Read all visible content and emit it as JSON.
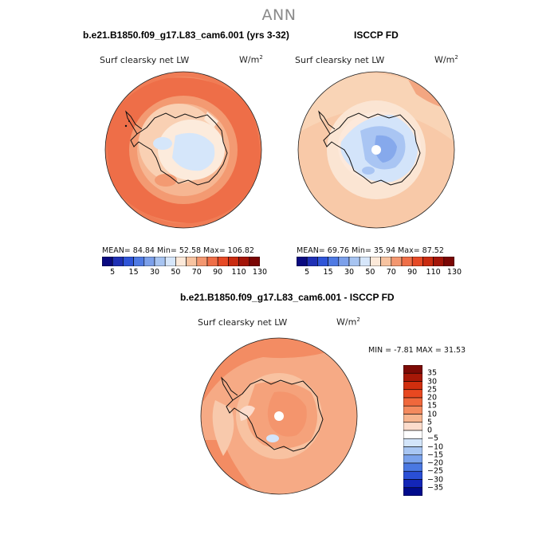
{
  "title": "ANN",
  "panel1": {
    "case_title": "b.e21.B1850.f09_g17.L83_cam6.001 (yrs 3-32)",
    "var_label": "Surf clearsky net LW",
    "units": "W/m",
    "units_sup": "2",
    "stats": "MEAN=  84.84   Min=  52.58   Max= 106.82"
  },
  "panel2": {
    "case_title": "ISCCP FD",
    "var_label": "Surf clearsky net LW",
    "units": "W/m",
    "units_sup": "2",
    "stats": "MEAN=  69.76   Min=  35.94   Max=  87.52"
  },
  "panel3": {
    "case_title": "b.e21.B1850.f09_g17.L83_cam6.001 - ISCCP FD",
    "var_label": "Surf clearsky net LW",
    "units": "W/m",
    "units_sup": "2",
    "stats": "MIN =   -7.81 MAX =   31.53"
  },
  "colorbar_main": {
    "colors": [
      "#0a0a80",
      "#1f30b5",
      "#2f55d8",
      "#4f7ae3",
      "#7ca0ea",
      "#a7c4f1",
      "#d6e6fa",
      "#fce9d9",
      "#f7c3a0",
      "#f39770",
      "#ef6f48",
      "#e64a26",
      "#c92b10",
      "#a31508",
      "#7a0604"
    ],
    "tick_labels": [
      "5",
      "15",
      "30",
      "50",
      "70",
      "90",
      "110",
      "130"
    ]
  },
  "colorbar_diff": {
    "colors": [
      "#000b8c",
      "#1326b8",
      "#2a4fd6",
      "#4a78e2",
      "#7aa2ec",
      "#a8c6f3",
      "#d3e5fa",
      "#ffffff",
      "#fcdccc",
      "#f7b58f",
      "#f48a5e",
      "#f0683c",
      "#e84820",
      "#d02e0e",
      "#a71807",
      "#7d0a05"
    ],
    "tick_labels": [
      "35",
      "30",
      "25",
      "20",
      "15",
      "10",
      "5",
      "0",
      "−5",
      "−10",
      "−15",
      "−20",
      "−25",
      "−30",
      "−35"
    ]
  },
  "chart_data": {
    "type": "heatmap",
    "projection": "south-polar-stereographic",
    "season": "ANN",
    "variable": "Surf clearsky net LW",
    "units": "W/m2",
    "panels": [
      {
        "name": "b.e21.B1850.f09_g17.L83_cam6.001 (yrs 3-32)",
        "mean": 84.84,
        "min": 52.58,
        "max": 106.82,
        "contour_levels": [
          5,
          15,
          30,
          50,
          70,
          90,
          110,
          130
        ]
      },
      {
        "name": "ISCCP FD",
        "mean": 69.76,
        "min": 35.94,
        "max": 87.52,
        "contour_levels": [
          5,
          15,
          30,
          50,
          70,
          90,
          110,
          130
        ]
      },
      {
        "name": "b.e21.B1850.f09_g17.L83_cam6.001 - ISCCP FD",
        "min": -7.81,
        "max": 31.53,
        "contour_levels": [
          -35,
          -30,
          -25,
          -20,
          -15,
          -10,
          -5,
          0,
          5,
          10,
          15,
          20,
          25,
          30,
          35
        ]
      }
    ]
  }
}
